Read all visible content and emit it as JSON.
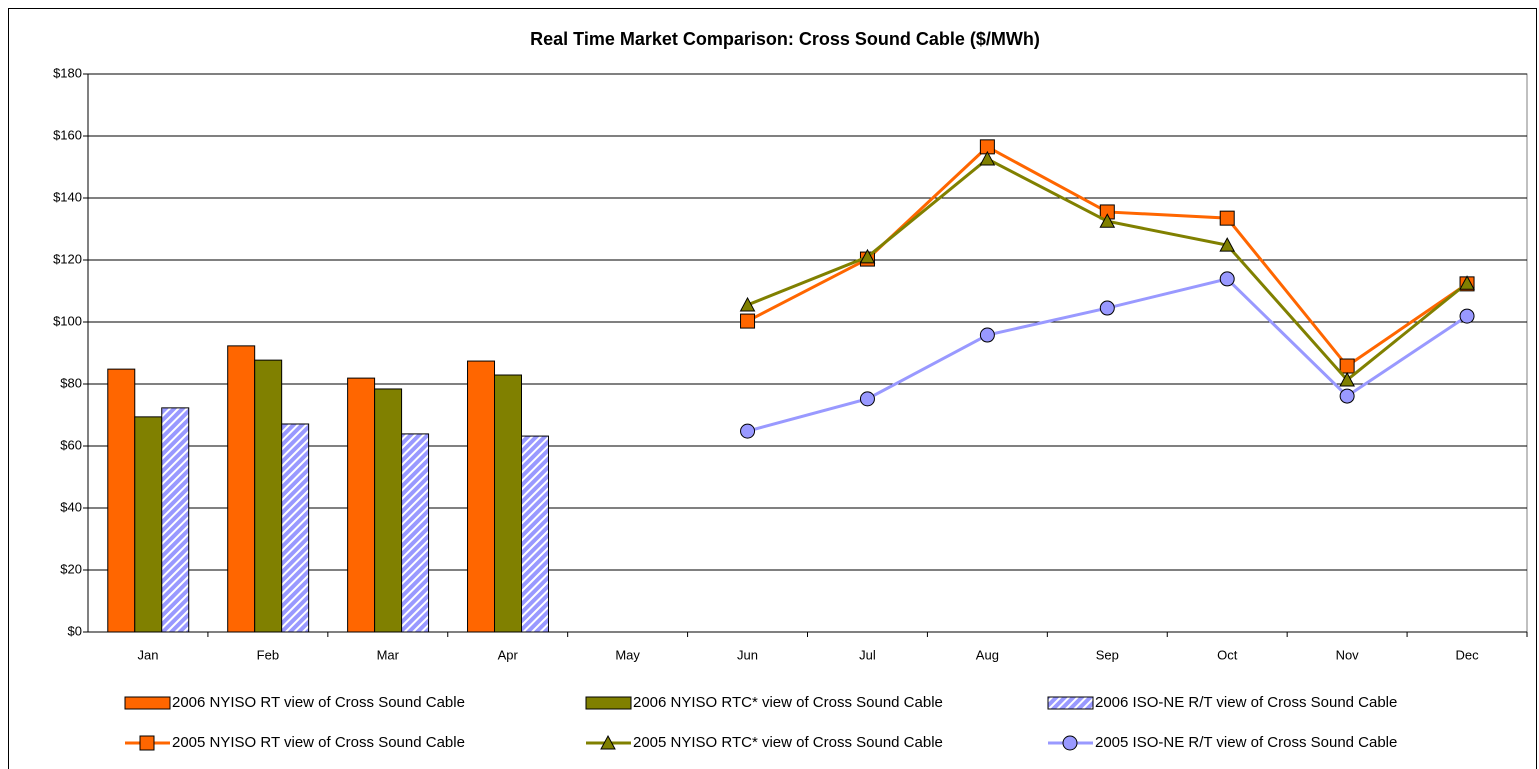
{
  "chart_data": {
    "type": "combo",
    "title": "Real Time Market Comparison: Cross Sound Cable ($/MWh)",
    "categories": [
      "Jan",
      "Feb",
      "Mar",
      "Apr",
      "May",
      "Jun",
      "Jul",
      "Aug",
      "Sep",
      "Oct",
      "Nov",
      "Dec"
    ],
    "ylim": [
      0,
      180
    ],
    "yticks": [
      {
        "value": 0,
        "label": "$0"
      },
      {
        "value": 20,
        "label": "$20"
      },
      {
        "value": 40,
        "label": "$40"
      },
      {
        "value": 60,
        "label": "$60"
      },
      {
        "value": 80,
        "label": "$80"
      },
      {
        "value": 100,
        "label": "$100"
      },
      {
        "value": 120,
        "label": "$120"
      },
      {
        "value": 140,
        "label": "$140"
      },
      {
        "value": 160,
        "label": "$160"
      },
      {
        "value": 180,
        "label": "$180"
      }
    ],
    "grid": true,
    "series": [
      {
        "name": "2006 NYISO RT view of Cross Sound Cable",
        "kind": "bar",
        "color": "#FF6600",
        "values": [
          84.8,
          92.3,
          81.9,
          87.4,
          null,
          null,
          null,
          null,
          null,
          null,
          null,
          null
        ]
      },
      {
        "name": "2006 NYISO RTC* view of Cross Sound Cable",
        "kind": "bar",
        "color": "#808000",
        "values": [
          69.4,
          87.7,
          78.4,
          82.9,
          null,
          null,
          null,
          null,
          null,
          null,
          null,
          null
        ]
      },
      {
        "name": "2006 ISO-NE R/T view of Cross Sound Cable",
        "kind": "bar",
        "color": "#9999FF",
        "hatch": true,
        "values": [
          72.3,
          67.1,
          63.9,
          63.2,
          null,
          null,
          null,
          null,
          null,
          null,
          null,
          null
        ]
      },
      {
        "name": "2005 NYISO RT view of Cross Sound Cable",
        "kind": "line",
        "color": "#FF6600",
        "marker": "square",
        "values": [
          null,
          null,
          null,
          null,
          null,
          100.3,
          120.3,
          156.5,
          135.5,
          133.5,
          85.8,
          112.3
        ]
      },
      {
        "name": "2005 NYISO RTC* view of Cross Sound Cable",
        "kind": "line",
        "color": "#808000",
        "marker": "triangle",
        "values": [
          null,
          null,
          null,
          null,
          null,
          105.5,
          121,
          152.6,
          132.5,
          124.8,
          81.3,
          112.5
        ]
      },
      {
        "name": "2005 ISO-NE R/T view of Cross Sound Cable",
        "kind": "line",
        "color": "#9999FF",
        "marker": "circle",
        "values": [
          null,
          null,
          null,
          null,
          null,
          64.8,
          75.2,
          95.8,
          104.5,
          113.9,
          76.1,
          101.9
        ]
      }
    ]
  }
}
